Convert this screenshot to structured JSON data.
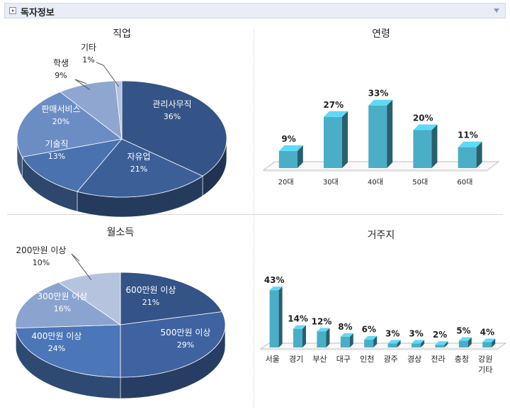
{
  "header": {
    "title": "독자정보"
  },
  "chart_data": [
    {
      "id": "job",
      "type": "pie",
      "title": "직업",
      "slices": [
        {
          "label": "관리사무직",
          "value": 36,
          "display": "36%",
          "color": "#345386"
        },
        {
          "label": "자유업",
          "value": 21,
          "display": "21%",
          "color": "#3c5f98"
        },
        {
          "label": "기술직",
          "value": 13,
          "display": "13%",
          "color": "#4a72af"
        },
        {
          "label": "판매서비스",
          "value": 20,
          "display": "20%",
          "color": "#6c8dc4"
        },
        {
          "label": "학생",
          "value": 9,
          "display": "9%",
          "color": "#8fa6d0"
        },
        {
          "label": "기타",
          "value": 1,
          "display": "1%",
          "color": "#b3c2df"
        }
      ]
    },
    {
      "id": "age",
      "type": "bar",
      "title": "연령",
      "categories": [
        "20대",
        "30대",
        "40대",
        "50대",
        "60대"
      ],
      "values": [
        9,
        27,
        33,
        20,
        11
      ],
      "labels": [
        "9%",
        "27%",
        "33%",
        "20%",
        "11%"
      ],
      "ylim": [
        0,
        40
      ],
      "grid": false,
      "color": "#4aaec6"
    },
    {
      "id": "income",
      "type": "pie",
      "title": "월소득",
      "slices": [
        {
          "label": "600만원 이상",
          "value": 21,
          "display": "21%",
          "color": "#345386"
        },
        {
          "label": "500만원 이상",
          "value": 29,
          "display": "29%",
          "color": "#3f62a0"
        },
        {
          "label": "400만원 이상",
          "value": 24,
          "display": "24%",
          "color": "#4b77b8"
        },
        {
          "label": "300만원 이상",
          "value": 16,
          "display": "16%",
          "color": "#8ba3cf"
        },
        {
          "label": "200만원 이상",
          "value": 10,
          "display": "10%",
          "color": "#b5c3df"
        }
      ]
    },
    {
      "id": "residence",
      "type": "bar",
      "title": "거주지",
      "categories": [
        "서울",
        "경기",
        "부산",
        "대구",
        "인천",
        "광주",
        "경상",
        "전라",
        "충청",
        "강원 기타"
      ],
      "values": [
        43,
        14,
        12,
        8,
        6,
        3,
        3,
        2,
        5,
        4
      ],
      "labels": [
        "43%",
        "14%",
        "12%",
        "8%",
        "6%",
        "3%",
        "3%",
        "2%",
        "5%",
        "4%"
      ],
      "ylim": [
        0,
        50
      ],
      "grid": false,
      "color": "#4aaec6"
    }
  ]
}
